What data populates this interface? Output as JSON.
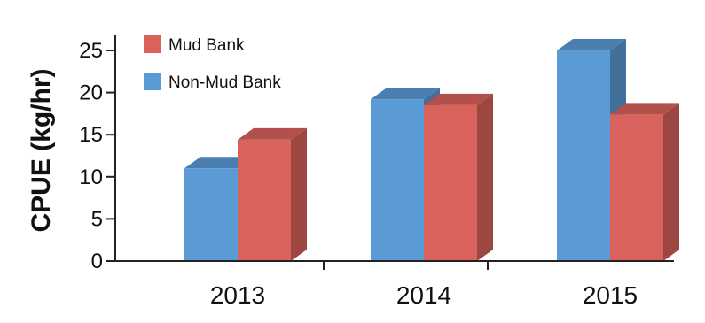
{
  "chart_data": {
    "type": "bar",
    "subtype": "3d-clustered-column",
    "title": "",
    "xlabel": "",
    "ylabel": "CPUE (kg/hr)",
    "categories": [
      "2013",
      "2014",
      "2015"
    ],
    "series": [
      {
        "name": "Non-Mud Bank",
        "color": "#5b9bd5",
        "values": [
          11,
          19.2,
          25
        ]
      },
      {
        "name": "Mud Bank",
        "color": "#d9625c",
        "values": [
          14.4,
          18.5,
          17.4
        ]
      }
    ],
    "ylim": [
      0,
      25
    ],
    "yticks": [
      0,
      5,
      10,
      15,
      20,
      25
    ],
    "legend": {
      "position": "top-left",
      "order": [
        "Mud Bank",
        "Non-Mud Bank"
      ]
    },
    "grid": false
  }
}
